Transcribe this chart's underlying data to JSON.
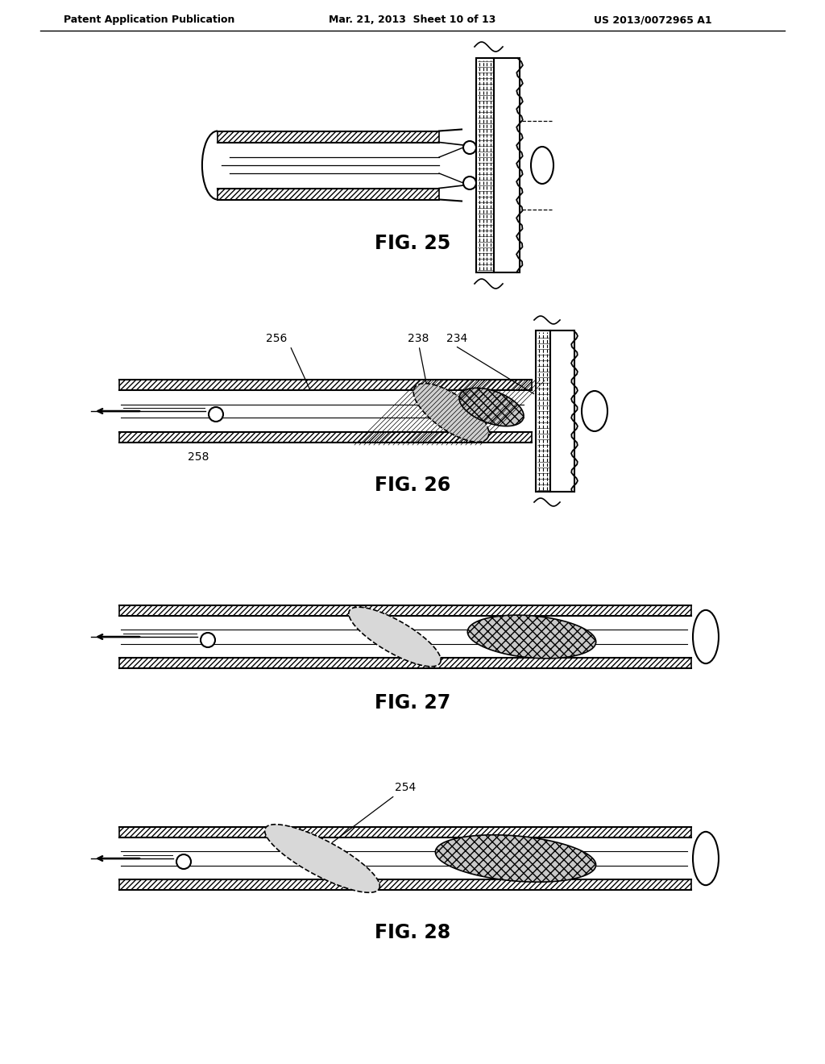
{
  "header_left": "Patent Application Publication",
  "header_mid": "Mar. 21, 2013  Sheet 10 of 13",
  "header_right": "US 2013/0072965 A1",
  "fig25_label": "FIG. 25",
  "fig26_label": "FIG. 26",
  "fig27_label": "FIG. 27",
  "fig28_label": "FIG. 28",
  "background_color": "#ffffff",
  "line_color": "#000000"
}
